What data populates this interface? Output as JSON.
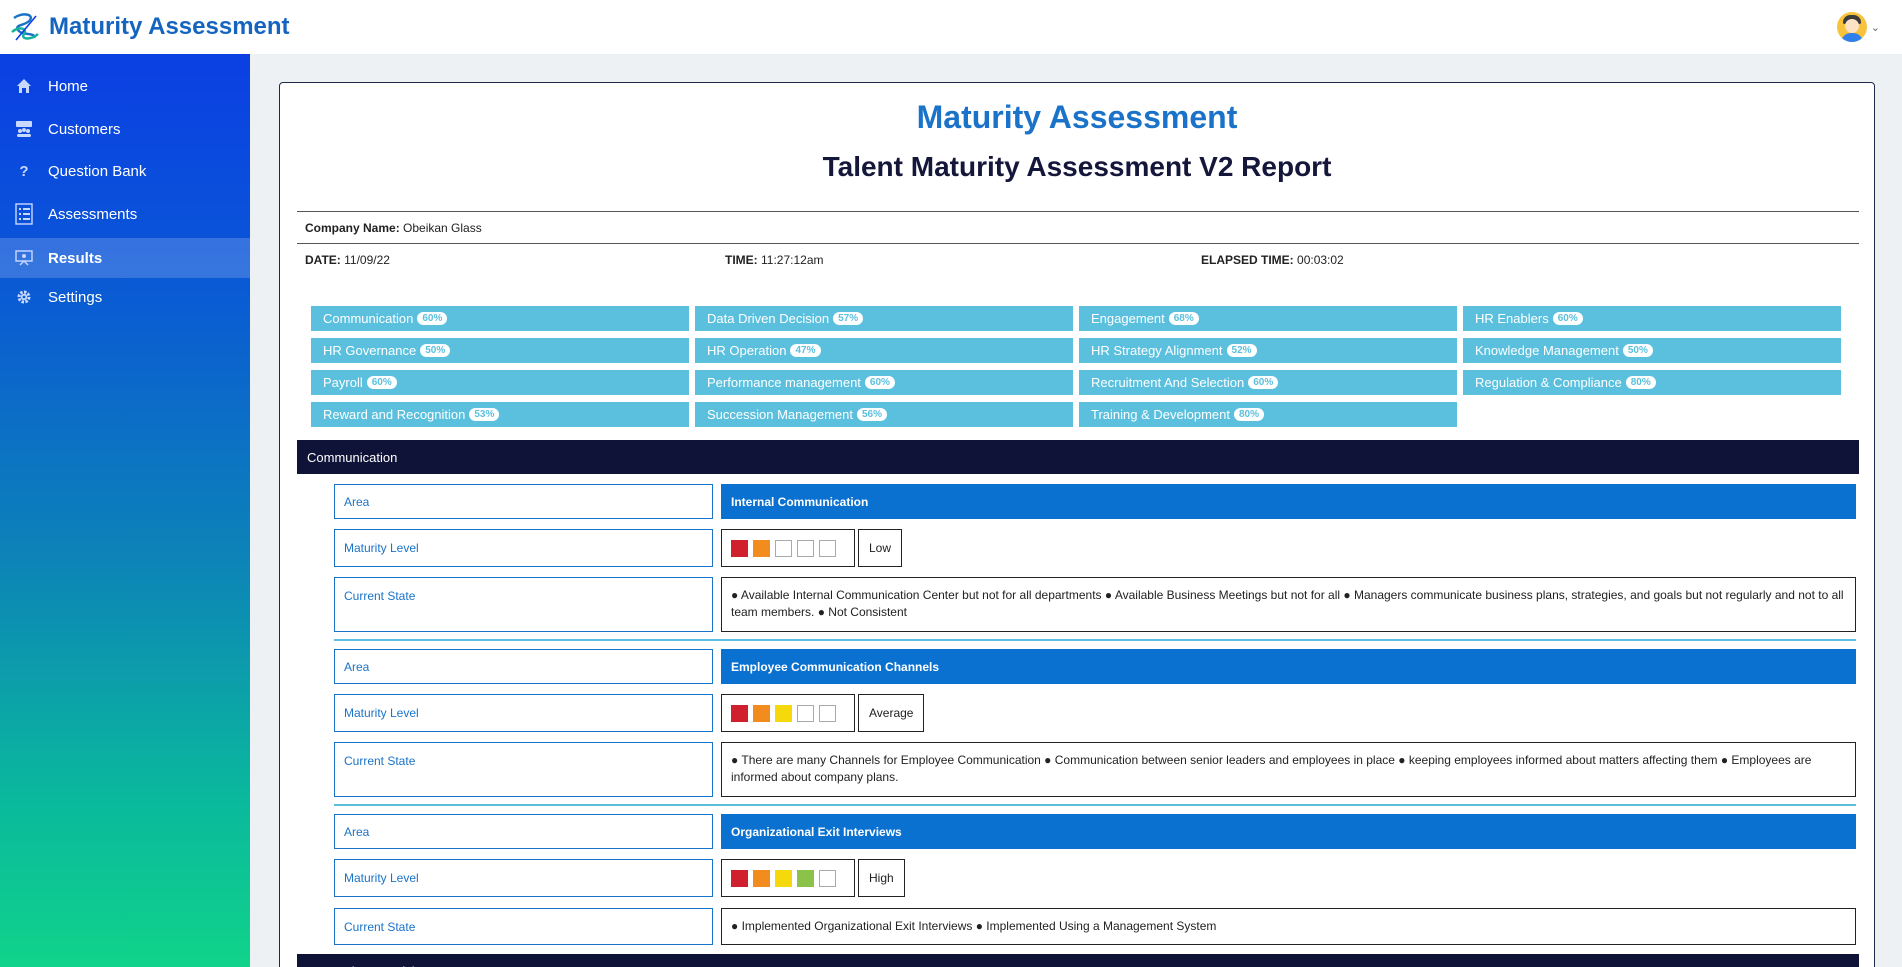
{
  "app": {
    "title": "Maturity Assessment"
  },
  "sidebar": {
    "items": [
      {
        "label": "Home",
        "icon": "home-icon"
      },
      {
        "label": "Customers",
        "icon": "customers-icon"
      },
      {
        "label": "Question Bank",
        "icon": "question-icon"
      },
      {
        "label": "Assessments",
        "icon": "list-icon"
      },
      {
        "label": "Results",
        "icon": "presentation-icon",
        "active": true
      },
      {
        "label": "Settings",
        "icon": "gear-icon"
      }
    ]
  },
  "report": {
    "title": "Maturity Assessment",
    "subtitle": "Talent Maturity Assessment V2 Report",
    "company_label": "Company Name:",
    "company_value": "Obeikan Glass",
    "date_label": "DATE:",
    "date_value": "11/09/22",
    "time_label": "TIME:",
    "time_value": "11:27:12am",
    "elapsed_label": "ELAPSED TIME:",
    "elapsed_value": "00:03:02"
  },
  "categories": [
    {
      "name": "Communication",
      "pct": "60%"
    },
    {
      "name": "Data Driven Decision",
      "pct": "57%"
    },
    {
      "name": "Engagement",
      "pct": "68%"
    },
    {
      "name": "HR Enablers",
      "pct": "60%"
    },
    {
      "name": "HR Governance",
      "pct": "50%"
    },
    {
      "name": "HR Operation",
      "pct": "47%"
    },
    {
      "name": "HR Strategy Alignment",
      "pct": "52%"
    },
    {
      "name": "Knowledge Management",
      "pct": "50%"
    },
    {
      "name": "Payroll",
      "pct": "60%"
    },
    {
      "name": "Performance management",
      "pct": "60%"
    },
    {
      "name": "Recruitment And Selection",
      "pct": "60%"
    },
    {
      "name": "Regulation & Compliance",
      "pct": "80%"
    },
    {
      "name": "Reward and Recognition",
      "pct": "53%"
    },
    {
      "name": "Succession Management",
      "pct": "56%"
    },
    {
      "name": "Training & Development",
      "pct": "80%"
    }
  ],
  "section": {
    "title": "Communication",
    "labels": {
      "area": "Area",
      "maturity": "Maturity Level",
      "state": "Current State"
    },
    "level_colors": [
      "#d0202e",
      "#f28c1e",
      "#f5d90a",
      "#8bc34a",
      "#2e9e44"
    ],
    "blocks": [
      {
        "area": "Internal Communication",
        "level": 2,
        "level_label": "Low",
        "state": "● Available Internal Communication Center but not for all departments ● Available Business Meetings but not for all ● Managers communicate business plans, strategies, and goals but not regularly and not to all team members. ● Not Consistent"
      },
      {
        "area": "Employee Communication Channels",
        "level": 3,
        "level_label": "Average",
        "state": "● There are many Channels for Employee Communication ● Communication between senior leaders and employees in place ● keeping employees informed about matters affecting them ● Employees are informed about company plans."
      },
      {
        "area": "Organizational Exit Interviews",
        "level": 4,
        "level_label": "High",
        "state": "● Implemented Organizational Exit Interviews ● Implemented Using a Management System"
      }
    ]
  },
  "next_section": {
    "title": "Data Driven Decision"
  }
}
